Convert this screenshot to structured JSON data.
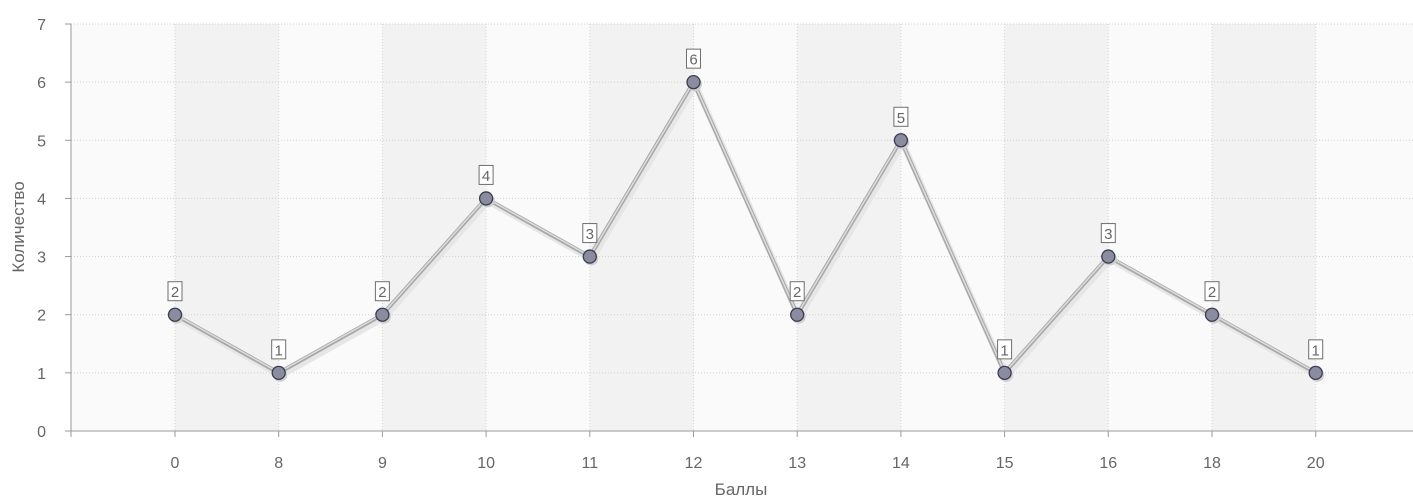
{
  "chart_data": {
    "type": "line",
    "xlabel": "Баллы",
    "ylabel": "Количество",
    "categories": [
      "0",
      "8",
      "9",
      "10",
      "11",
      "12",
      "13",
      "14",
      "15",
      "16",
      "18",
      "20"
    ],
    "series": [
      {
        "values": [
          2,
          1,
          2,
          4,
          3,
          6,
          2,
          5,
          1,
          3,
          2,
          1
        ]
      }
    ],
    "ylim": [
      0,
      7
    ],
    "yticks": [
      "0",
      "1",
      "2",
      "3",
      "4",
      "5",
      "6",
      "7"
    ],
    "grid": true,
    "data_labels": true,
    "colors": {
      "line": "#c8c8c8",
      "marker_fill": "#8c8ca0",
      "marker_stroke": "#3c3c50",
      "band_dark": "#f2f2f2",
      "band_light": "#fafafa",
      "text": "#666666"
    }
  }
}
